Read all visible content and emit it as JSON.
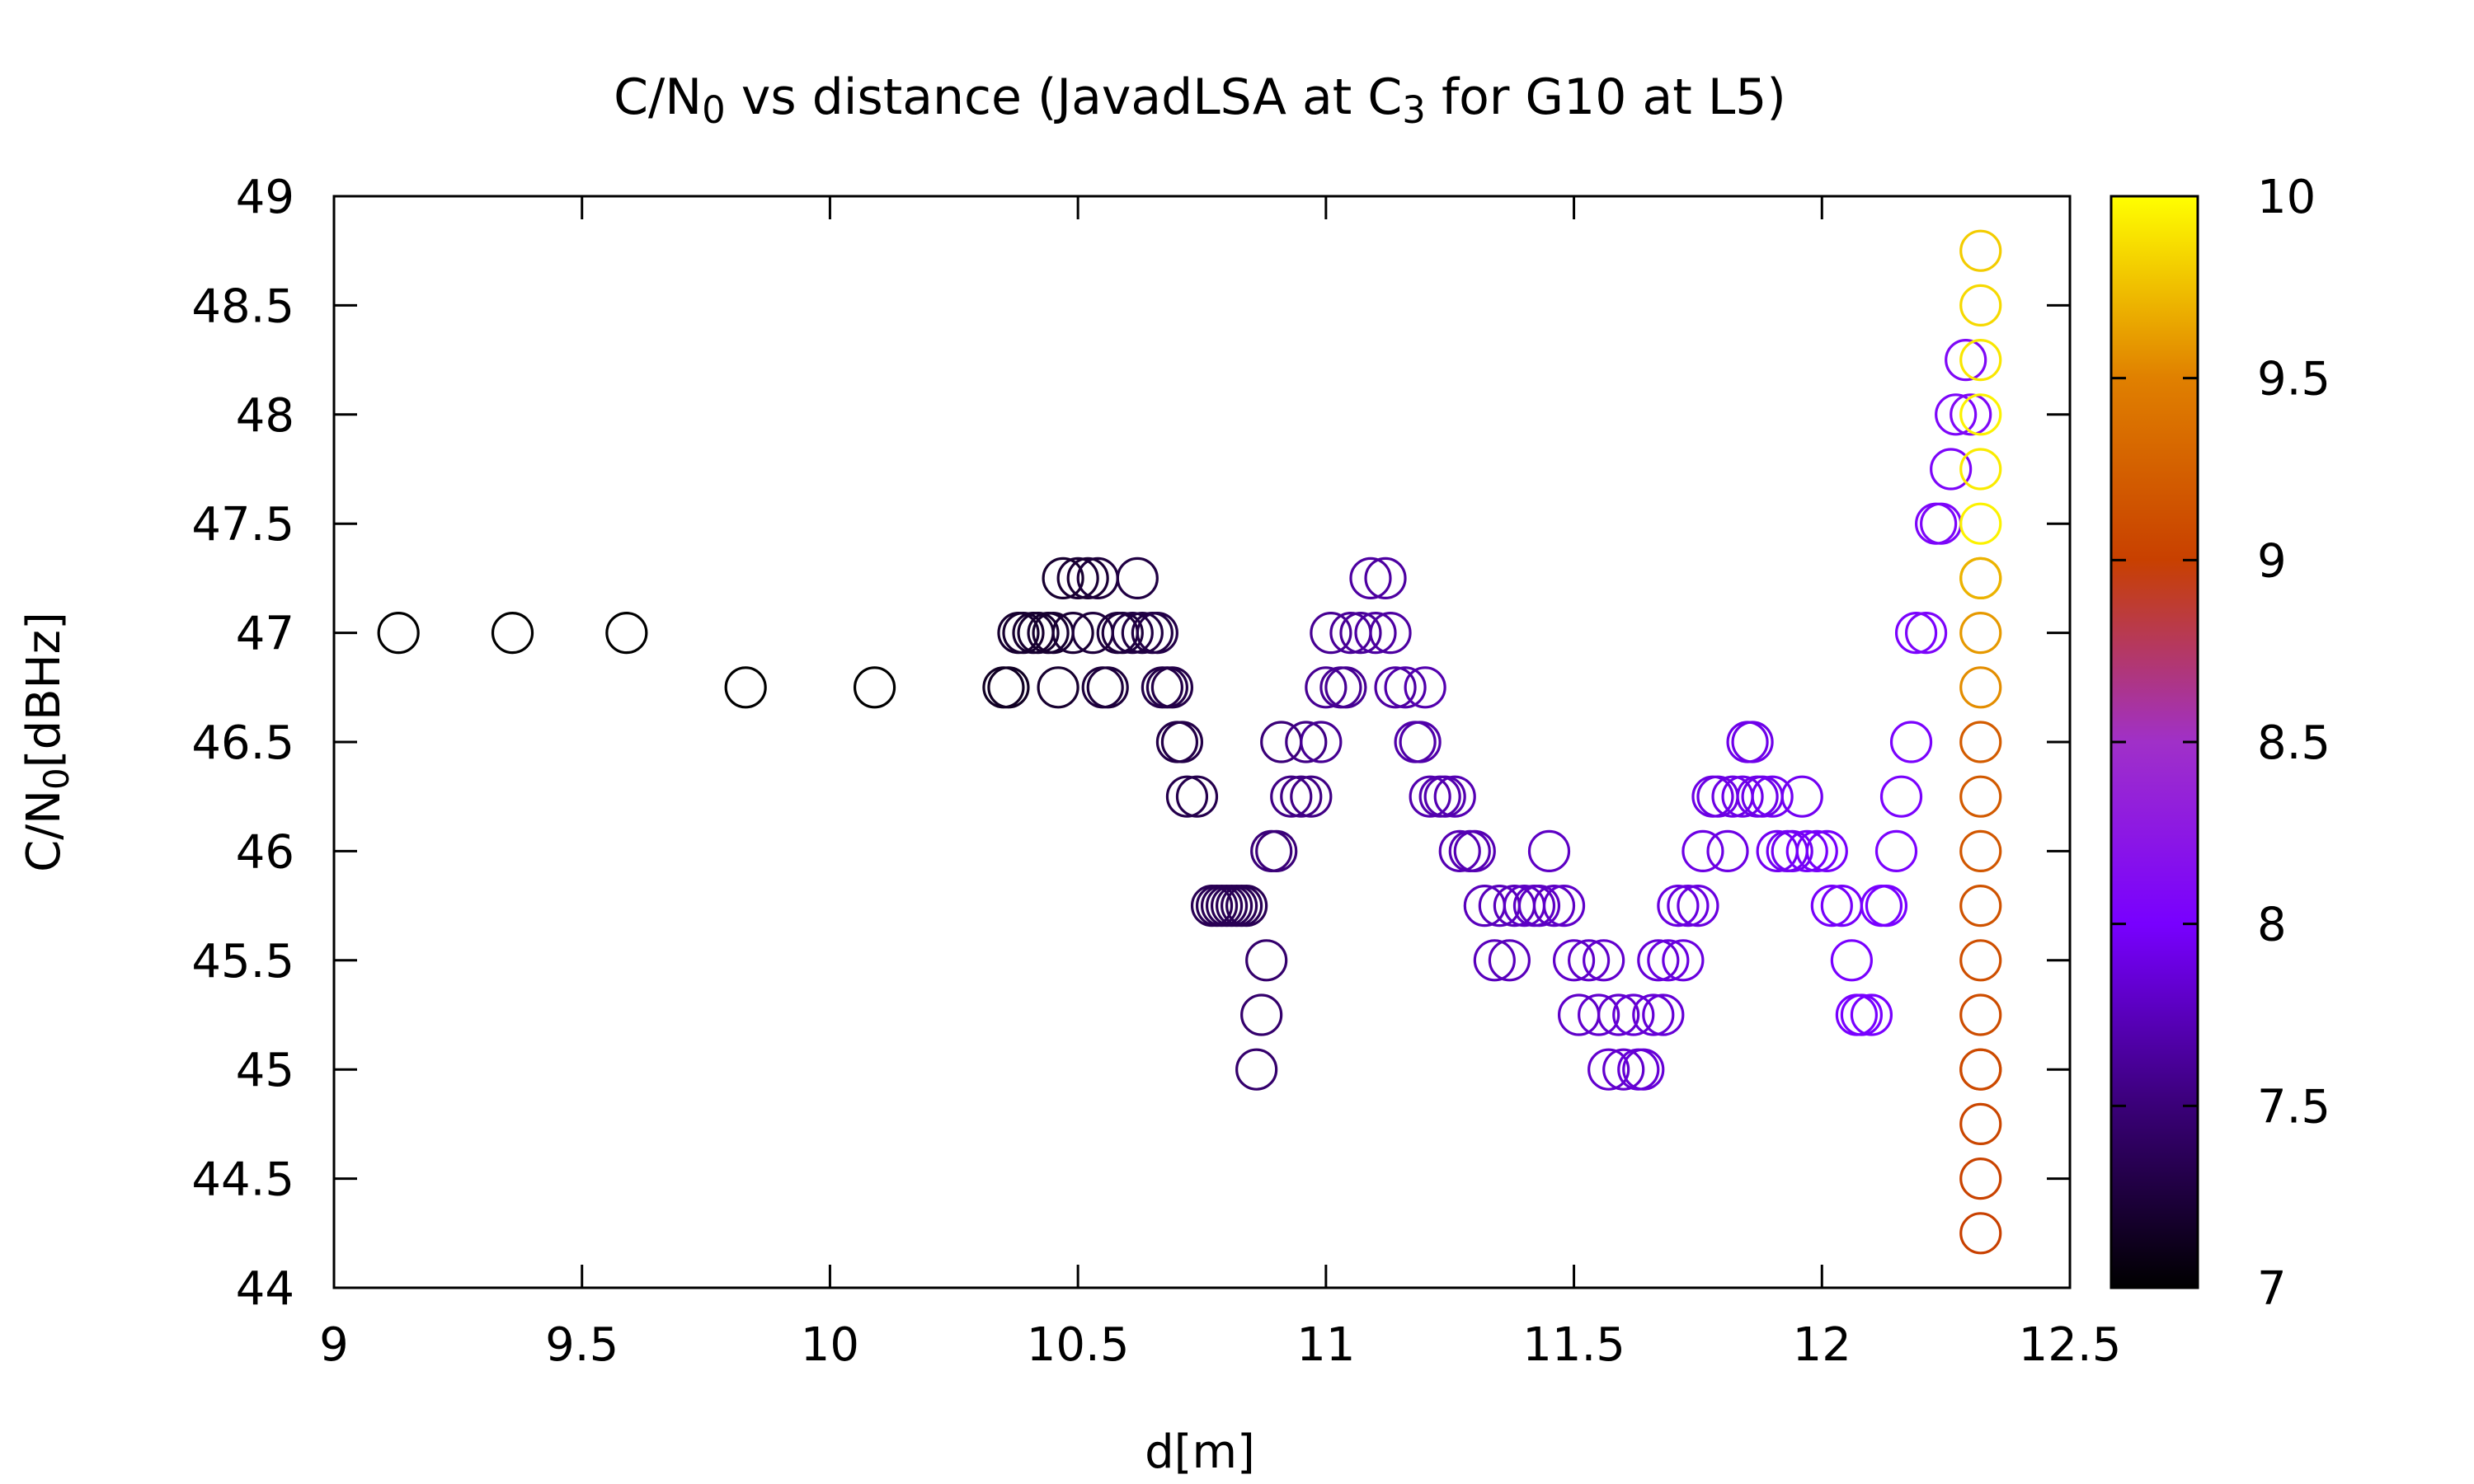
{
  "chart_data": {
    "type": "scatter",
    "title": {
      "parts": [
        {
          "text": "C/N",
          "sub": false
        },
        {
          "text": "0",
          "sub": true
        },
        {
          "text": " vs distance (JavadLSA at C",
          "sub": false
        },
        {
          "text": "3",
          "sub": true
        },
        {
          "text": " for G10 at L5)",
          "sub": false
        }
      ]
    },
    "xlabel": "d[m]",
    "ylabel": {
      "parts": [
        {
          "text": "C/N",
          "sub": false
        },
        {
          "text": "0",
          "sub": true
        },
        {
          "text": "[dBHz]",
          "sub": false
        }
      ]
    },
    "xlim": [
      9,
      12.5
    ],
    "ylim": [
      44,
      49
    ],
    "x_ticks": [
      9,
      9.5,
      10,
      10.5,
      11,
      11.5,
      12,
      12.5
    ],
    "y_ticks": [
      44,
      44.5,
      45,
      45.5,
      46,
      46.5,
      47,
      47.5,
      48,
      48.5,
      49
    ],
    "x_tick_labels": [
      "9",
      "9.5",
      "10",
      "10.5",
      "11",
      "11.5",
      "12",
      "12.5"
    ],
    "y_tick_labels": [
      "44",
      "44.5",
      "45",
      "45.5",
      "46",
      "46.5",
      "47",
      "47.5",
      "48",
      "48.5",
      "49"
    ],
    "colorbar": {
      "range": [
        7,
        10
      ],
      "ticks": [
        7,
        7.5,
        8,
        8.5,
        9,
        9.5,
        10
      ],
      "tick_labels": [
        "7",
        "7.5",
        "8",
        "8.5",
        "9",
        "9.5",
        "10"
      ],
      "colormap": [
        "#000000",
        "#3a0078",
        "#7800ff",
        "#a030c8",
        "#c84000",
        "#e08000",
        "#ffff00"
      ]
    },
    "grid": false,
    "marker": "open-circle",
    "points": [
      [
        9.13,
        47.0,
        7.0
      ],
      [
        9.36,
        47.0,
        7.0
      ],
      [
        9.59,
        47.0,
        7.0
      ],
      [
        9.83,
        46.75,
        7.0
      ],
      [
        10.09,
        46.75,
        7.0
      ],
      [
        10.35,
        46.75,
        7.15
      ],
      [
        10.36,
        46.75,
        7.15
      ],
      [
        10.38,
        47.0,
        7.2
      ],
      [
        10.39,
        47.0,
        7.2
      ],
      [
        10.41,
        47.0,
        7.2
      ],
      [
        10.42,
        47.0,
        7.2
      ],
      [
        10.44,
        47.0,
        7.2
      ],
      [
        10.45,
        47.0,
        7.2
      ],
      [
        10.46,
        46.75,
        7.2
      ],
      [
        10.47,
        47.25,
        7.2
      ],
      [
        10.49,
        47.0,
        7.22
      ],
      [
        10.5,
        47.25,
        7.22
      ],
      [
        10.52,
        47.25,
        7.22
      ],
      [
        10.53,
        47.0,
        7.25
      ],
      [
        10.54,
        47.25,
        7.25
      ],
      [
        10.55,
        46.75,
        7.25
      ],
      [
        10.56,
        46.75,
        7.25
      ],
      [
        10.58,
        47.0,
        7.25
      ],
      [
        10.59,
        47.0,
        7.25
      ],
      [
        10.61,
        47.0,
        7.28
      ],
      [
        10.62,
        47.25,
        7.28
      ],
      [
        10.63,
        47.0,
        7.28
      ],
      [
        10.65,
        47.0,
        7.28
      ],
      [
        10.66,
        47.0,
        7.3
      ],
      [
        10.67,
        46.75,
        7.3
      ],
      [
        10.68,
        46.75,
        7.3
      ],
      [
        10.69,
        46.75,
        7.3
      ],
      [
        10.7,
        46.5,
        7.3
      ],
      [
        10.71,
        46.5,
        7.3
      ],
      [
        10.72,
        46.25,
        7.32
      ],
      [
        10.74,
        46.25,
        7.32
      ],
      [
        10.77,
        45.75,
        7.35
      ],
      [
        10.78,
        45.75,
        7.35
      ],
      [
        10.79,
        45.75,
        7.35
      ],
      [
        10.8,
        45.75,
        7.35
      ],
      [
        10.81,
        45.75,
        7.35
      ],
      [
        10.82,
        45.75,
        7.35
      ],
      [
        10.83,
        45.75,
        7.35
      ],
      [
        10.84,
        45.75,
        7.35
      ],
      [
        10.86,
        45.0,
        7.45
      ],
      [
        10.87,
        45.25,
        7.45
      ],
      [
        10.88,
        45.5,
        7.45
      ],
      [
        10.89,
        46.0,
        7.5
      ],
      [
        10.9,
        46.0,
        7.5
      ],
      [
        10.91,
        46.5,
        7.5
      ],
      [
        10.93,
        46.25,
        7.55
      ],
      [
        10.95,
        46.25,
        7.55
      ],
      [
        10.96,
        46.5,
        7.55
      ],
      [
        10.97,
        46.25,
        7.55
      ],
      [
        10.99,
        46.5,
        7.6
      ],
      [
        11.0,
        46.75,
        7.6
      ],
      [
        11.01,
        47.0,
        7.6
      ],
      [
        11.03,
        46.75,
        7.6
      ],
      [
        11.04,
        46.75,
        7.6
      ],
      [
        11.05,
        47.0,
        7.62
      ],
      [
        11.07,
        47.0,
        7.62
      ],
      [
        11.09,
        47.25,
        7.65
      ],
      [
        11.1,
        47.0,
        7.65
      ],
      [
        11.12,
        47.25,
        7.65
      ],
      [
        11.13,
        47.0,
        7.65
      ],
      [
        11.14,
        46.75,
        7.65
      ],
      [
        11.16,
        46.75,
        7.68
      ],
      [
        11.18,
        46.5,
        7.68
      ],
      [
        11.19,
        46.5,
        7.68
      ],
      [
        11.2,
        46.75,
        7.7
      ],
      [
        11.21,
        46.25,
        7.7
      ],
      [
        11.23,
        46.25,
        7.7
      ],
      [
        11.24,
        46.25,
        7.7
      ],
      [
        11.26,
        46.25,
        7.72
      ],
      [
        11.27,
        46.0,
        7.72
      ],
      [
        11.29,
        46.0,
        7.72
      ],
      [
        11.3,
        46.0,
        7.72
      ],
      [
        11.32,
        45.75,
        7.75
      ],
      [
        11.34,
        45.5,
        7.75
      ],
      [
        11.35,
        45.75,
        7.75
      ],
      [
        11.37,
        45.5,
        7.75
      ],
      [
        11.38,
        45.75,
        7.75
      ],
      [
        11.4,
        45.75,
        7.78
      ],
      [
        11.42,
        45.75,
        7.78
      ],
      [
        11.43,
        45.75,
        7.78
      ],
      [
        11.45,
        46.0,
        7.78
      ],
      [
        11.46,
        45.75,
        7.78
      ],
      [
        11.48,
        45.75,
        7.8
      ],
      [
        11.5,
        45.5,
        7.8
      ],
      [
        11.51,
        45.25,
        7.8
      ],
      [
        11.53,
        45.5,
        7.8
      ],
      [
        11.55,
        45.25,
        7.82
      ],
      [
        11.56,
        45.5,
        7.82
      ],
      [
        11.57,
        45.0,
        7.82
      ],
      [
        11.59,
        45.25,
        7.82
      ],
      [
        11.6,
        45.0,
        7.82
      ],
      [
        11.62,
        45.25,
        7.85
      ],
      [
        11.63,
        45.0,
        7.85
      ],
      [
        11.64,
        45.0,
        7.85
      ],
      [
        11.66,
        45.25,
        7.85
      ],
      [
        11.67,
        45.5,
        7.85
      ],
      [
        11.68,
        45.25,
        7.85
      ],
      [
        11.69,
        45.5,
        7.88
      ],
      [
        11.71,
        45.75,
        7.88
      ],
      [
        11.72,
        45.5,
        7.88
      ],
      [
        11.73,
        45.75,
        7.88
      ],
      [
        11.75,
        45.75,
        7.88
      ],
      [
        11.76,
        46.0,
        7.9
      ],
      [
        11.78,
        46.25,
        7.9
      ],
      [
        11.79,
        46.25,
        7.9
      ],
      [
        11.81,
        46.0,
        7.9
      ],
      [
        11.82,
        46.25,
        7.9
      ],
      [
        11.84,
        46.25,
        7.92
      ],
      [
        11.85,
        46.5,
        7.92
      ],
      [
        11.86,
        46.5,
        7.92
      ],
      [
        11.87,
        46.25,
        7.92
      ],
      [
        11.88,
        46.25,
        7.92
      ],
      [
        11.9,
        46.25,
        7.95
      ],
      [
        11.91,
        46.0,
        7.95
      ],
      [
        11.93,
        46.0,
        7.95
      ],
      [
        11.94,
        46.0,
        7.95
      ],
      [
        11.96,
        46.25,
        7.95
      ],
      [
        11.97,
        46.0,
        7.98
      ],
      [
        11.99,
        46.0,
        7.98
      ],
      [
        12.01,
        46.0,
        7.98
      ],
      [
        12.02,
        45.75,
        7.98
      ],
      [
        12.04,
        45.75,
        7.98
      ],
      [
        12.06,
        45.5,
        8.0
      ],
      [
        12.07,
        45.25,
        8.0
      ],
      [
        12.08,
        45.25,
        8.0
      ],
      [
        12.1,
        45.25,
        8.0
      ],
      [
        12.12,
        45.75,
        8.0
      ],
      [
        12.13,
        45.75,
        8.0
      ],
      [
        12.15,
        46.0,
        8.02
      ],
      [
        12.16,
        46.25,
        8.02
      ],
      [
        12.18,
        46.5,
        8.02
      ],
      [
        12.19,
        47.0,
        8.02
      ],
      [
        12.21,
        47.0,
        8.05
      ],
      [
        12.23,
        47.5,
        8.05
      ],
      [
        12.24,
        47.5,
        8.05
      ],
      [
        12.26,
        47.75,
        8.05
      ],
      [
        12.27,
        48.0,
        8.05
      ],
      [
        12.29,
        48.25,
        8.08
      ],
      [
        12.3,
        48.0,
        8.08
      ],
      [
        12.32,
        44.25,
        9.0
      ],
      [
        12.32,
        44.5,
        9.02
      ],
      [
        12.32,
        44.75,
        9.05
      ],
      [
        12.32,
        45.0,
        9.08
      ],
      [
        12.32,
        45.0,
        9.08
      ],
      [
        12.32,
        45.25,
        9.1
      ],
      [
        12.32,
        45.5,
        9.12
      ],
      [
        12.32,
        45.75,
        9.15
      ],
      [
        12.32,
        46.0,
        9.18
      ],
      [
        12.32,
        46.25,
        9.2
      ],
      [
        12.32,
        46.5,
        9.22
      ],
      [
        12.32,
        46.75,
        9.55
      ],
      [
        12.32,
        47.0,
        9.6
      ],
      [
        12.32,
        47.25,
        9.65
      ],
      [
        12.32,
        47.25,
        9.7
      ],
      [
        12.32,
        47.5,
        9.95
      ],
      [
        12.32,
        47.75,
        9.92
      ],
      [
        12.32,
        48.0,
        9.95
      ],
      [
        12.32,
        48.25,
        9.9
      ],
      [
        12.32,
        48.5,
        9.85
      ],
      [
        12.32,
        48.75,
        9.8
      ]
    ]
  }
}
